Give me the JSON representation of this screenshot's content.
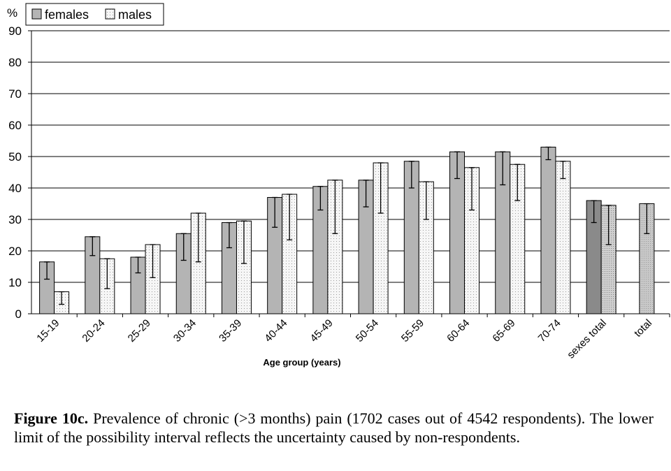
{
  "chart_data": {
    "type": "bar",
    "ylabel": "%",
    "xlabel": "Age group (years)",
    "ylim": [
      0,
      90
    ],
    "yticks": [
      0,
      10,
      20,
      30,
      40,
      50,
      60,
      70,
      80,
      90
    ],
    "grid": true,
    "legend_position": "top-left",
    "categories": [
      "15-19",
      "20-24",
      "25-29",
      "30-34",
      "35-39",
      "40-44",
      "45-49",
      "50-54",
      "55-59",
      "60-64",
      "65-69",
      "70-74",
      "sexes total",
      "total"
    ],
    "series": [
      {
        "name": "females",
        "values": [
          16.5,
          24.5,
          18,
          25.5,
          29,
          37,
          40.5,
          42.5,
          48.5,
          51.5,
          51.5,
          53,
          36,
          null
        ],
        "error_low": [
          11,
          18.5,
          13,
          17,
          21,
          27.5,
          33,
          34,
          40,
          43,
          41,
          49,
          29,
          null
        ],
        "error_high": [
          16.5,
          24.5,
          18,
          25.5,
          29,
          37,
          40.5,
          42.5,
          48.5,
          51.5,
          51.5,
          53,
          36,
          null
        ]
      },
      {
        "name": "males",
        "values": [
          7,
          17.5,
          22,
          32,
          29.5,
          38,
          42.5,
          48,
          42,
          46.5,
          47.5,
          48.5,
          34.5,
          null
        ],
        "error_low": [
          3,
          8,
          11.5,
          16.5,
          16,
          23.5,
          25.5,
          32,
          30,
          33,
          36,
          43,
          22,
          null
        ],
        "error_high": [
          7,
          17.5,
          22,
          32,
          29.5,
          38,
          42.5,
          48,
          42,
          46.5,
          47.5,
          48.5,
          34.5,
          null
        ]
      },
      {
        "name": "total",
        "values": [
          null,
          null,
          null,
          null,
          null,
          null,
          null,
          null,
          null,
          null,
          null,
          null,
          null,
          35
        ],
        "error_low": [
          null,
          null,
          null,
          null,
          null,
          null,
          null,
          null,
          null,
          null,
          null,
          null,
          null,
          25.5
        ],
        "error_high": [
          null,
          null,
          null,
          null,
          null,
          null,
          null,
          null,
          null,
          null,
          null,
          null,
          null,
          35
        ]
      }
    ],
    "colors": {
      "females": "#b4b4b4",
      "males": "#f2f2f2",
      "sexes_total_females": "#8a8a8a",
      "sexes_total_males": "#d2d2d2",
      "total": "#c4c4c4"
    }
  },
  "caption": {
    "label": "Figure 10c.",
    "text": " Prevalence of chronic (>3 months) pain (1702 cases out of 4542 respondents). The lower limit of the possibility interval reflects the uncertainty caused by non-respondents."
  }
}
